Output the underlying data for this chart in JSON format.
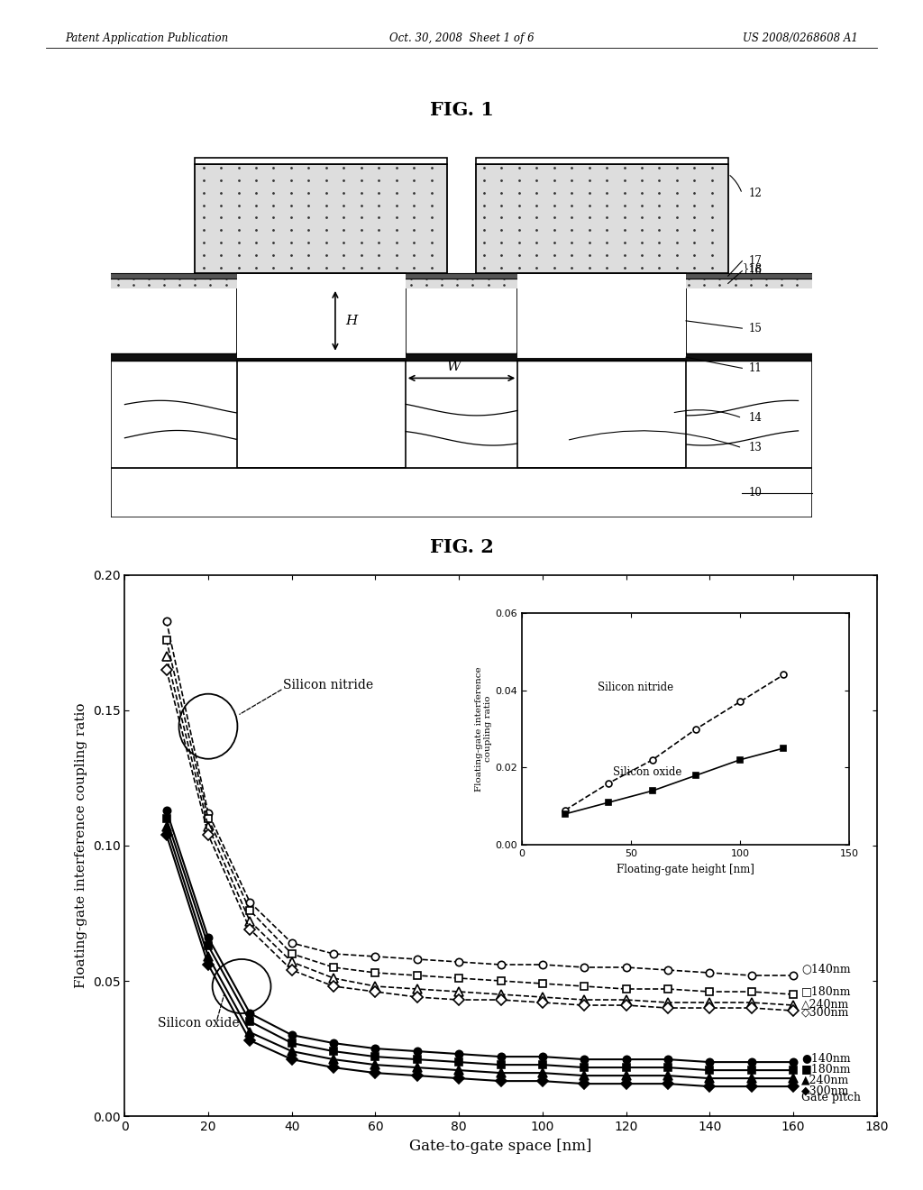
{
  "header": {
    "left": "Patent Application Publication",
    "center": "Oct. 30, 2008  Sheet 1 of 6",
    "right": "US 2008/0268608 A1"
  },
  "fig1_title": "FIG. 1",
  "fig2_title": "FIG. 2",
  "fig2": {
    "xlabel": "Gate-to-gate space [nm]",
    "ylabel": "Floating-gate interference coupling ratio",
    "xlim": [
      0,
      180
    ],
    "ylim": [
      0.0,
      0.2
    ],
    "xticks": [
      0,
      20,
      40,
      60,
      80,
      100,
      120,
      140,
      160,
      180
    ],
    "yticks": [
      0.0,
      0.05,
      0.1,
      0.15,
      0.2
    ],
    "silicon_nitride_label": "Silicon nitride",
    "silicon_oxide_label": "Silicon oxide",
    "gate_pitch_label": "Gate pitch",
    "nitride_140": {
      "x": [
        10,
        20,
        30,
        40,
        50,
        60,
        70,
        80,
        90,
        100,
        110,
        120,
        130,
        140,
        150,
        160
      ],
      "y": [
        0.183,
        0.112,
        0.079,
        0.064,
        0.06,
        0.059,
        0.058,
        0.057,
        0.056,
        0.056,
        0.055,
        0.055,
        0.054,
        0.053,
        0.052,
        0.052
      ]
    },
    "nitride_180": {
      "x": [
        10,
        20,
        30,
        40,
        50,
        60,
        70,
        80,
        90,
        100,
        110,
        120,
        130,
        140,
        150,
        160
      ],
      "y": [
        0.176,
        0.11,
        0.076,
        0.06,
        0.055,
        0.053,
        0.052,
        0.051,
        0.05,
        0.049,
        0.048,
        0.047,
        0.047,
        0.046,
        0.046,
        0.045
      ]
    },
    "nitride_240": {
      "x": [
        10,
        20,
        30,
        40,
        50,
        60,
        70,
        80,
        90,
        100,
        110,
        120,
        130,
        140,
        150,
        160
      ],
      "y": [
        0.17,
        0.107,
        0.072,
        0.057,
        0.051,
        0.048,
        0.047,
        0.046,
        0.045,
        0.044,
        0.043,
        0.043,
        0.042,
        0.042,
        0.042,
        0.041
      ]
    },
    "nitride_300": {
      "x": [
        10,
        20,
        30,
        40,
        50,
        60,
        70,
        80,
        90,
        100,
        110,
        120,
        130,
        140,
        150,
        160
      ],
      "y": [
        0.165,
        0.104,
        0.069,
        0.054,
        0.048,
        0.046,
        0.044,
        0.043,
        0.043,
        0.042,
        0.041,
        0.041,
        0.04,
        0.04,
        0.04,
        0.039
      ]
    },
    "oxide_140": {
      "x": [
        10,
        20,
        30,
        40,
        50,
        60,
        70,
        80,
        90,
        100,
        110,
        120,
        130,
        140,
        150,
        160
      ],
      "y": [
        0.113,
        0.066,
        0.038,
        0.03,
        0.027,
        0.025,
        0.024,
        0.023,
        0.022,
        0.022,
        0.021,
        0.021,
        0.021,
        0.02,
        0.02,
        0.02
      ]
    },
    "oxide_180": {
      "x": [
        10,
        20,
        30,
        40,
        50,
        60,
        70,
        80,
        90,
        100,
        110,
        120,
        130,
        140,
        150,
        160
      ],
      "y": [
        0.11,
        0.063,
        0.035,
        0.027,
        0.024,
        0.022,
        0.021,
        0.02,
        0.019,
        0.019,
        0.018,
        0.018,
        0.018,
        0.017,
        0.017,
        0.017
      ]
    },
    "oxide_240": {
      "x": [
        10,
        20,
        30,
        40,
        50,
        60,
        70,
        80,
        90,
        100,
        110,
        120,
        130,
        140,
        150,
        160
      ],
      "y": [
        0.107,
        0.059,
        0.031,
        0.024,
        0.021,
        0.019,
        0.018,
        0.017,
        0.016,
        0.016,
        0.015,
        0.015,
        0.015,
        0.014,
        0.014,
        0.014
      ]
    },
    "oxide_300": {
      "x": [
        10,
        20,
        30,
        40,
        50,
        60,
        70,
        80,
        90,
        100,
        110,
        120,
        130,
        140,
        150,
        160
      ],
      "y": [
        0.104,
        0.056,
        0.028,
        0.021,
        0.018,
        0.016,
        0.015,
        0.014,
        0.013,
        0.013,
        0.012,
        0.012,
        0.012,
        0.011,
        0.011,
        0.011
      ]
    }
  },
  "inset": {
    "xlabel": "Floating-gate height [nm]",
    "ylabel": "Floating-gate interference\ncoupling ratio",
    "xlim": [
      0,
      150
    ],
    "ylim": [
      0.0,
      0.06
    ],
    "xticks": [
      0,
      50,
      100,
      150
    ],
    "yticks": [
      0.0,
      0.02,
      0.04,
      0.06
    ],
    "nitride_x": [
      20,
      40,
      60,
      80,
      100,
      120
    ],
    "nitride_y": [
      0.009,
      0.016,
      0.022,
      0.03,
      0.037,
      0.044
    ],
    "oxide_x": [
      20,
      40,
      60,
      80,
      100,
      120
    ],
    "oxide_y": [
      0.008,
      0.011,
      0.014,
      0.018,
      0.022,
      0.025
    ]
  },
  "bg_color": "#ffffff"
}
